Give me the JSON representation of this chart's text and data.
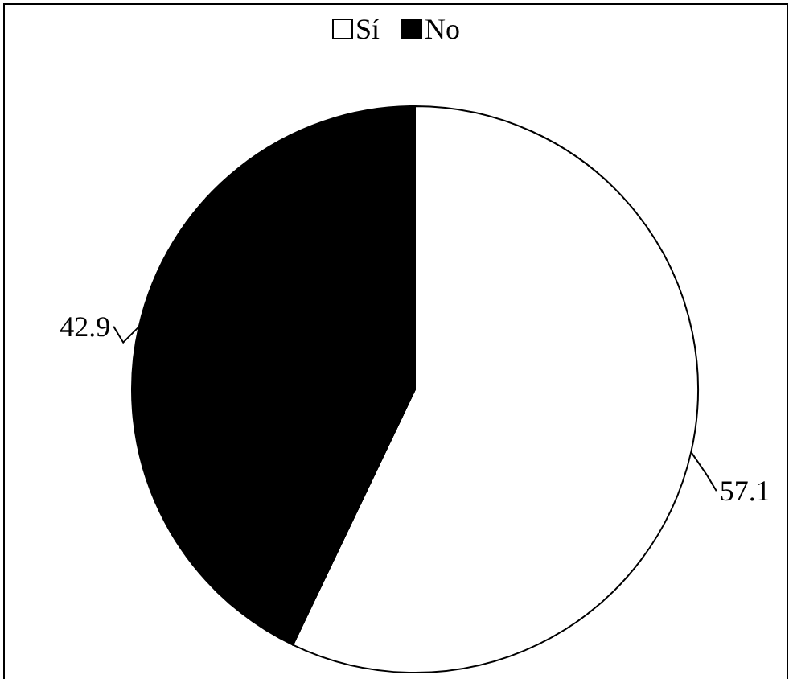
{
  "chart_data": {
    "type": "pie",
    "categories": [
      "Sí",
      "No"
    ],
    "values": [
      57.1,
      42.9
    ],
    "colors": [
      "#ffffff",
      "#000000"
    ],
    "data_labels": true,
    "legend": "top"
  }
}
